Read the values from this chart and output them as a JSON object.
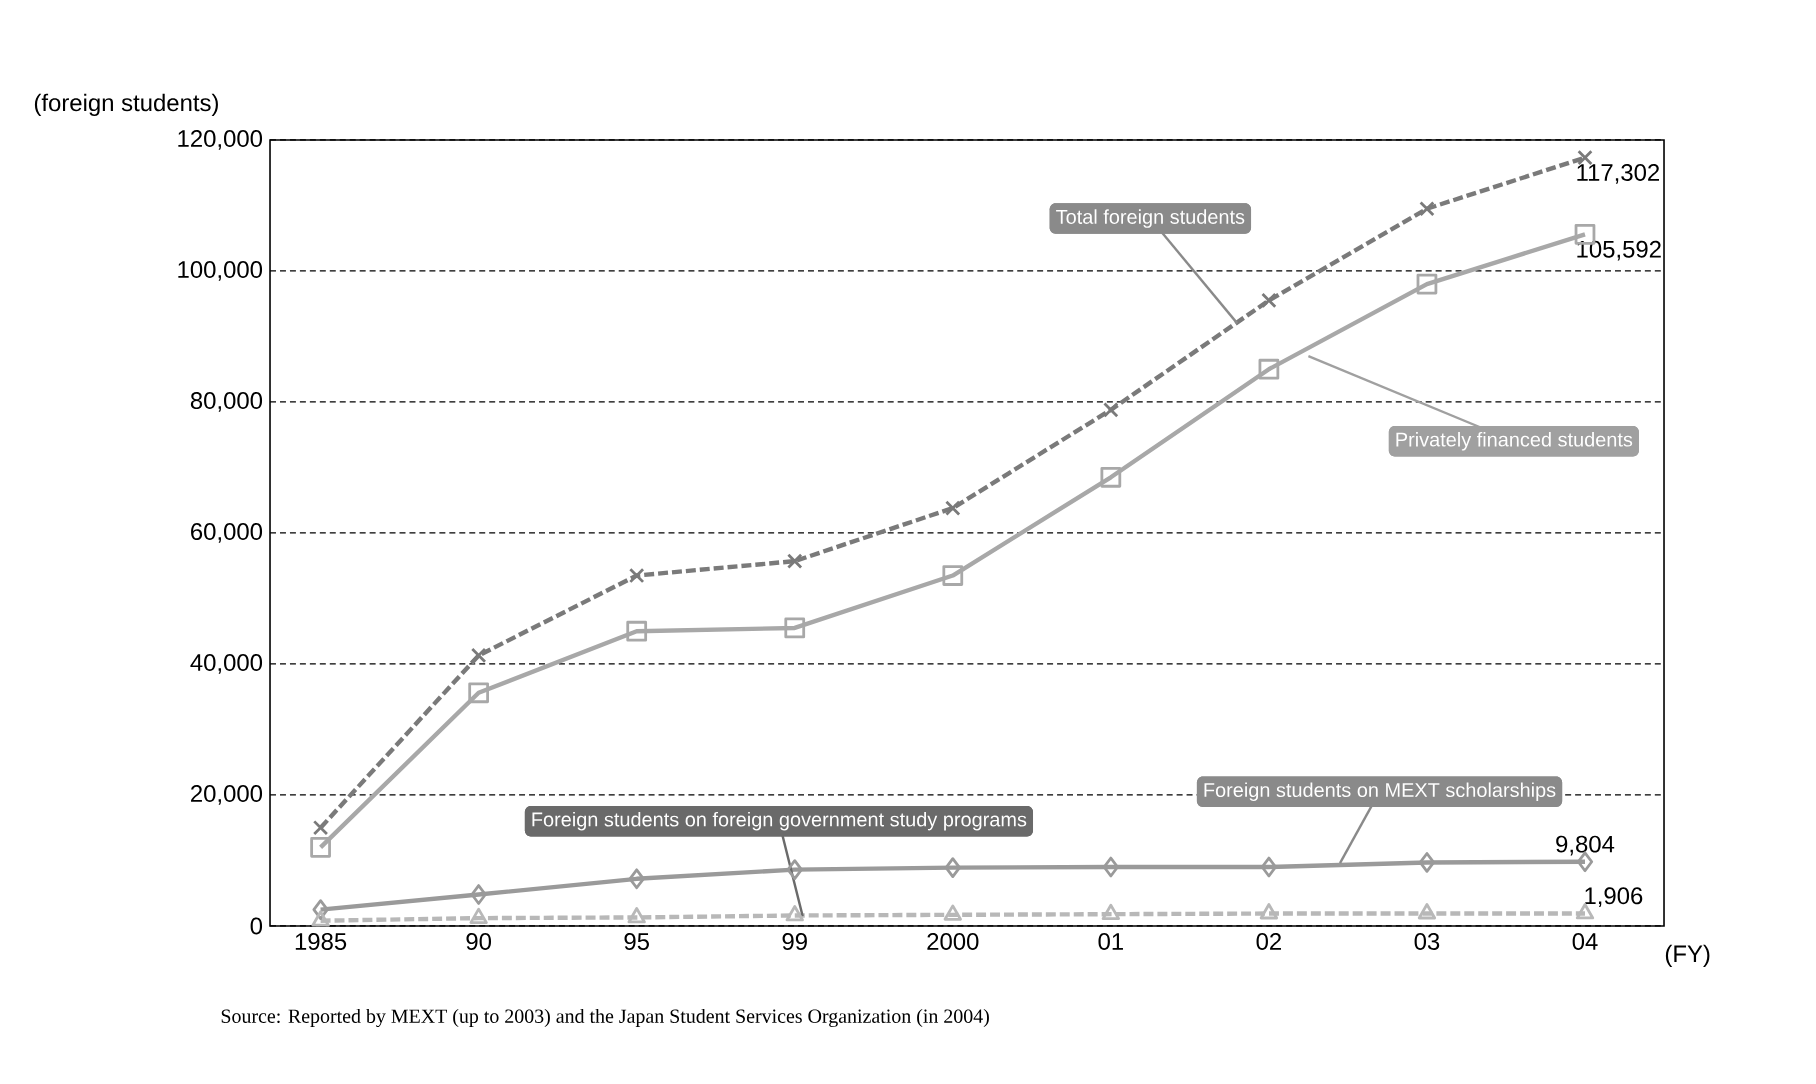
{
  "chart_data": {
    "type": "line",
    "ylabel": "(foreign students)",
    "xlabel": "(FY)",
    "categories": [
      "1985",
      "90",
      "95",
      "99",
      "2000",
      "01",
      "02",
      "03",
      "04"
    ],
    "series": [
      {
        "name": "Total foreign students",
        "color": "#7a7a7a",
        "marker": "cross",
        "line_style": "dashed",
        "values": [
          15000,
          41300,
          53500,
          55700,
          63800,
          78800,
          95500,
          109500,
          117302
        ],
        "value_labels": [
          null,
          null,
          null,
          null,
          null,
          null,
          null,
          null,
          "117,302"
        ]
      },
      {
        "name": "Privately financed students",
        "color": "#a8a8a8",
        "marker": "square",
        "line_style": "solid",
        "values": [
          12000,
          35600,
          45000,
          45500,
          53500,
          68500,
          85000,
          98000,
          105592
        ],
        "value_labels": [
          null,
          null,
          null,
          null,
          null,
          null,
          null,
          null,
          "105,592"
        ]
      },
      {
        "name": "Foreign students on MEXT scholarships",
        "color": "#9a9a9a",
        "marker": "diamond",
        "line_style": "solid",
        "values": [
          2500,
          4800,
          7200,
          8600,
          8900,
          9000,
          9000,
          9700,
          9804
        ],
        "value_labels": [
          null,
          null,
          null,
          null,
          null,
          null,
          null,
          null,
          "9,804"
        ]
      },
      {
        "name": "Foreign students on foreign government study programs",
        "color": "#b8b8b8",
        "marker": "triangle",
        "line_style": "dashed",
        "values": [
          800,
          1200,
          1300,
          1600,
          1700,
          1800,
          1900,
          1900,
          1906
        ],
        "value_labels": [
          null,
          null,
          null,
          null,
          null,
          null,
          null,
          null,
          "1,906"
        ]
      }
    ],
    "ylim": [
      0,
      120000
    ],
    "yticks": [
      {
        "value": 0,
        "label": "0"
      },
      {
        "value": 20000,
        "label": "20,000"
      },
      {
        "value": 40000,
        "label": "40,000"
      },
      {
        "value": 60000,
        "label": "60,000"
      },
      {
        "value": 80000,
        "label": "80,000"
      },
      {
        "value": 100000,
        "label": "100,000"
      },
      {
        "value": 120000,
        "label": "120,000"
      }
    ],
    "grid": "y",
    "annotations": [
      "Source: Reported by MEXT (up to 2003) and the Japan Student Services Organization (in 2004)"
    ]
  }
}
